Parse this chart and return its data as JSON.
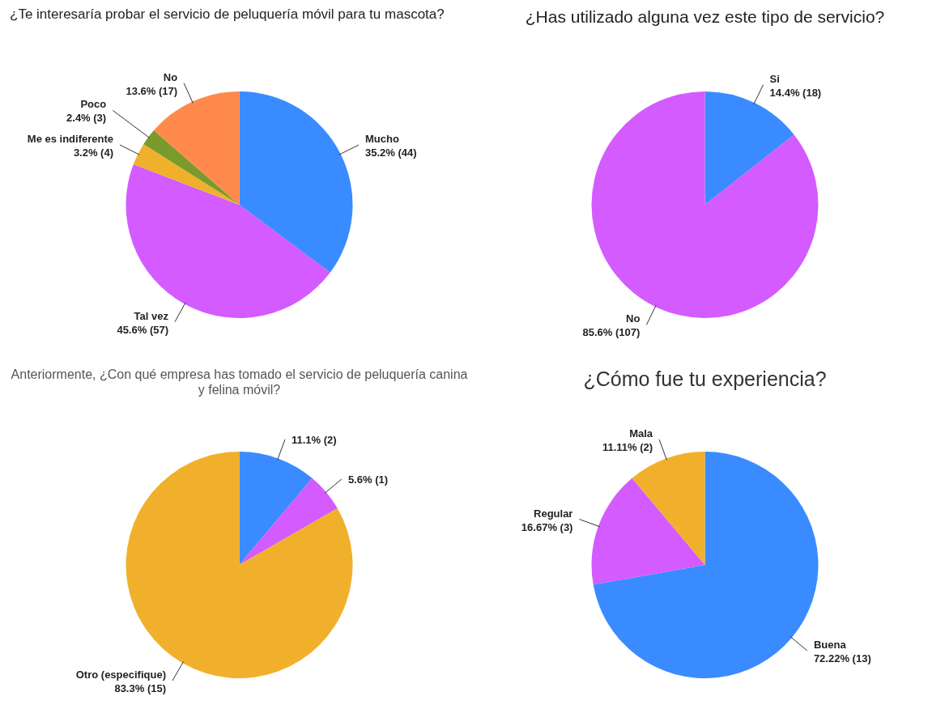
{
  "chart_data": [
    {
      "type": "pie",
      "title": "¿Te interesaría probar el servicio de peluquería móvil para tu mascota?",
      "categories": [
        "Mucho",
        "Tal vez",
        "Me es indiferente",
        "Poco",
        "No"
      ],
      "values": [
        44,
        57,
        4,
        3,
        17
      ],
      "colors": [
        "#3a8bff",
        "#d35bff",
        "#f1b02b",
        "#7a9a2d",
        "#ff8a4c"
      ],
      "value_labels": [
        "35.2% (44)",
        "45.6% (57)",
        "3.2% (4)",
        "2.4% (3)",
        "13.6% (17)"
      ]
    },
    {
      "type": "pie",
      "title": "¿Has utilizado alguna vez este tipo de servicio?",
      "categories": [
        "Si",
        "No"
      ],
      "values": [
        18,
        107
      ],
      "colors": [
        "#3a8bff",
        "#d35bff"
      ],
      "value_labels": [
        "14.4% (18)",
        "85.6% (107)"
      ]
    },
    {
      "type": "pie",
      "title": "Anteriormente, ¿Con qué empresa has tomado el servicio de peluquería canina y felina móvil?",
      "categories": [
        null,
        null,
        "Otro (especifique)"
      ],
      "values": [
        2,
        1,
        15
      ],
      "colors": [
        "#3a8bff",
        "#d35bff",
        "#f1b02b"
      ],
      "value_labels": [
        "11.1% (2)",
        "5.6% (1)",
        "83.3% (15)"
      ]
    },
    {
      "type": "pie",
      "title": "¿Cómo fue tu experiencia?",
      "categories": [
        "Buena",
        "Regular",
        "Mala"
      ],
      "values": [
        13,
        3,
        2
      ],
      "colors": [
        "#3a8bff",
        "#d35bff",
        "#f1b02b"
      ],
      "value_labels": [
        "72.22% (13)",
        "16.67% (3)",
        "11.11% (2)"
      ]
    }
  ]
}
